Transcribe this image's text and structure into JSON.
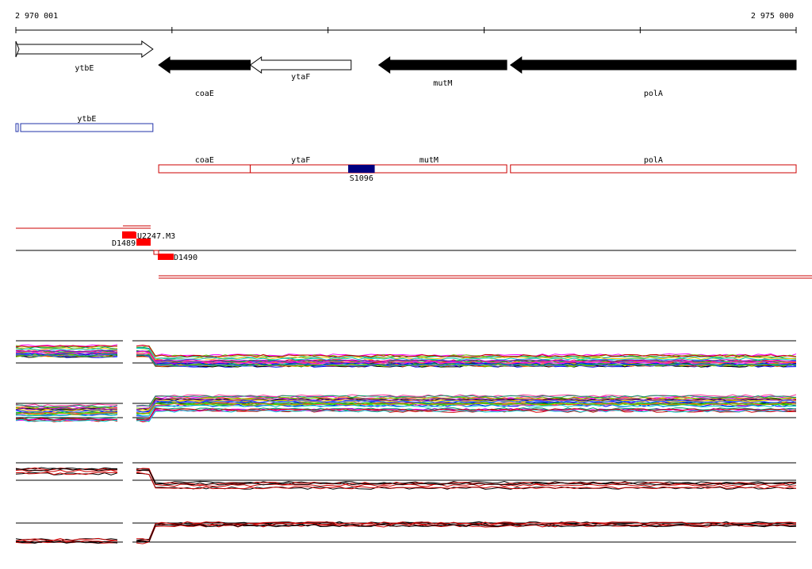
{
  "ruler": {
    "start_label": "2 970 001",
    "end_label": "2 975 000",
    "start": 2970001,
    "end": 2975000
  },
  "colors": {
    "cds_annotation": "#000000",
    "cds_border": "#cc0000",
    "transcript_border": "#2233aa",
    "segment_fill": "#000080",
    "probe_fill": "#ff0000"
  },
  "genes": [
    {
      "name": "ytbE",
      "start": 2970001,
      "end": 2970879,
      "strand": "+",
      "style": "open"
    },
    {
      "name": "coaE",
      "start": 2970916,
      "end": 2971503,
      "strand": "-",
      "style": "filled"
    },
    {
      "name": "ytaF",
      "start": 2971503,
      "end": 2972149,
      "strand": "-",
      "style": "open"
    },
    {
      "name": "mutM",
      "start": 2972326,
      "end": 2973146,
      "strand": "-",
      "style": "filled"
    },
    {
      "name": "polA",
      "start": 2973170,
      "end": 2975000,
      "strand": "-",
      "style": "filled"
    }
  ],
  "transcripts": [
    {
      "name": "ytbE",
      "start": 2970001,
      "end": 2970879,
      "color": "#2233aa"
    },
    {
      "name": "coaE",
      "start": 2970916,
      "end": 2971503,
      "color": "#cc0000"
    },
    {
      "name": "ytaF",
      "start": 2971503,
      "end": 2972149,
      "color": "#cc0000"
    },
    {
      "name": "mutM",
      "start": 2972149,
      "end": 2973146,
      "color": "#cc0000"
    },
    {
      "name": "polA",
      "start": 2973170,
      "end": 2975000,
      "color": "#cc0000"
    }
  ],
  "segment": {
    "name": "S1096",
    "start": 2972130,
    "end": 2972300
  },
  "probes": [
    {
      "name": "D1489",
      "start": 2970680,
      "end": 2970780,
      "strand": "+"
    },
    {
      "name": "U2247.M3",
      "start": 2970760,
      "end": 2970860,
      "strand": "+"
    },
    {
      "name": "D1490",
      "start": 2970900,
      "end": 2971000,
      "strand": "-"
    }
  ],
  "expression_tracks": [
    {
      "id": "track-1",
      "kind": "multi-condition"
    },
    {
      "id": "track-2",
      "kind": "multi-condition"
    },
    {
      "id": "track-3",
      "kind": "red-black"
    },
    {
      "id": "track-4",
      "kind": "red-black"
    }
  ]
}
